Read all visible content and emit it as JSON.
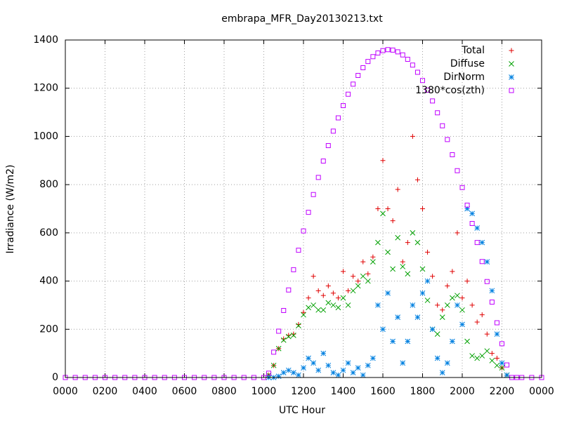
{
  "chart_data": {
    "type": "scatter",
    "title": "embrapa_MFR_Day20130213.txt",
    "x_label": "UTC Hour",
    "y_label": "Irradiance (W/m2)",
    "xlim": [
      0,
      24
    ],
    "ylim": [
      0,
      1400
    ],
    "xticks": [
      {
        "value": 0,
        "label": "0000"
      },
      {
        "value": 2,
        "label": "0200"
      },
      {
        "value": 4,
        "label": "0400"
      },
      {
        "value": 6,
        "label": "0600"
      },
      {
        "value": 8,
        "label": "0800"
      },
      {
        "value": 10,
        "label": "1000"
      },
      {
        "value": 12,
        "label": "1200"
      },
      {
        "value": 14,
        "label": "1400"
      },
      {
        "value": 16,
        "label": "1600"
      },
      {
        "value": 18,
        "label": "1800"
      },
      {
        "value": 20,
        "label": "2000"
      },
      {
        "value": 22,
        "label": "2200"
      },
      {
        "value": 24,
        "label": "0000"
      }
    ],
    "yticks": [
      0,
      200,
      400,
      600,
      800,
      1000,
      1200,
      1400
    ],
    "grid": true,
    "legend": "top-right",
    "x": [
      0,
      0.5,
      1,
      1.5,
      2,
      2.5,
      3,
      3.5,
      4,
      4.5,
      5,
      5.5,
      6,
      6.5,
      7,
      7.5,
      8,
      8.5,
      9,
      9.5,
      10,
      10.25,
      10.5,
      10.75,
      11,
      11.25,
      11.5,
      11.75,
      12,
      12.25,
      12.5,
      12.75,
      13,
      13.25,
      13.5,
      13.75,
      14,
      14.25,
      14.5,
      14.75,
      15,
      15.25,
      15.5,
      15.75,
      16,
      16.25,
      16.5,
      16.75,
      17,
      17.25,
      17.5,
      17.75,
      18,
      18.25,
      18.5,
      18.75,
      19,
      19.25,
      19.5,
      19.75,
      20,
      20.25,
      20.5,
      20.75,
      21,
      21.25,
      21.5,
      21.75,
      22,
      22.25,
      22.5,
      22.75,
      23,
      23.5,
      24
    ],
    "series": [
      {
        "name": "Total",
        "color": "#e00000",
        "marker": "plus",
        "values": [
          null,
          null,
          null,
          null,
          null,
          null,
          null,
          null,
          null,
          null,
          null,
          null,
          null,
          null,
          null,
          null,
          null,
          null,
          null,
          null,
          null,
          10,
          50,
          120,
          160,
          175,
          180,
          220,
          270,
          330,
          420,
          360,
          340,
          380,
          350,
          330,
          440,
          360,
          420,
          400,
          480,
          430,
          500,
          700,
          900,
          700,
          650,
          780,
          480,
          560,
          1000,
          820,
          700,
          520,
          420,
          300,
          280,
          380,
          440,
          600,
          330,
          400,
          300,
          230,
          260,
          180,
          100,
          80,
          40,
          10,
          null,
          null,
          null,
          null,
          null
        ]
      },
      {
        "name": "Diffuse",
        "color": "#00a000",
        "marker": "cross",
        "values": [
          null,
          null,
          null,
          null,
          null,
          null,
          null,
          null,
          null,
          null,
          null,
          null,
          null,
          null,
          null,
          null,
          null,
          null,
          null,
          null,
          null,
          10,
          50,
          120,
          155,
          170,
          175,
          215,
          260,
          290,
          300,
          280,
          280,
          310,
          300,
          290,
          330,
          300,
          360,
          380,
          420,
          400,
          480,
          560,
          680,
          520,
          450,
          580,
          460,
          430,
          600,
          560,
          450,
          320,
          200,
          180,
          250,
          300,
          330,
          340,
          280,
          150,
          90,
          80,
          90,
          110,
          70,
          50,
          40,
          10,
          null,
          null,
          null,
          null,
          null
        ]
      },
      {
        "name": "DirNorm",
        "color": "#0080e0",
        "marker": "star",
        "values": [
          null,
          null,
          null,
          null,
          null,
          null,
          null,
          null,
          null,
          null,
          null,
          null,
          null,
          null,
          null,
          null,
          null,
          null,
          null,
          null,
          null,
          0,
          0,
          5,
          20,
          30,
          20,
          10,
          40,
          80,
          60,
          30,
          100,
          50,
          20,
          10,
          30,
          60,
          20,
          40,
          10,
          50,
          80,
          300,
          200,
          350,
          150,
          250,
          60,
          150,
          300,
          250,
          350,
          400,
          200,
          80,
          20,
          60,
          150,
          300,
          220,
          700,
          680,
          620,
          560,
          480,
          360,
          180,
          60,
          10,
          null,
          null,
          null,
          null,
          null
        ]
      },
      {
        "name": "1380*cos(zth)",
        "color": "#c000ff",
        "marker": "square",
        "values": [
          0,
          0,
          0,
          0,
          0,
          0,
          0,
          0,
          0,
          0,
          0,
          0,
          0,
          0,
          0,
          0,
          0,
          0,
          0,
          0,
          0,
          18,
          105,
          192,
          278,
          363,
          447,
          528,
          608,
          685,
          759,
          830,
          898,
          962,
          1022,
          1077,
          1128,
          1175,
          1217,
          1253,
          1285,
          1311,
          1331,
          1346,
          1356,
          1360,
          1358,
          1351,
          1338,
          1320,
          1296,
          1266,
          1232,
          1192,
          1147,
          1098,
          1044,
          987,
          924,
          858,
          788,
          715,
          639,
          560,
          481,
          398,
          313,
          227,
          140,
          52,
          0,
          0,
          0,
          0,
          0
        ]
      }
    ]
  }
}
